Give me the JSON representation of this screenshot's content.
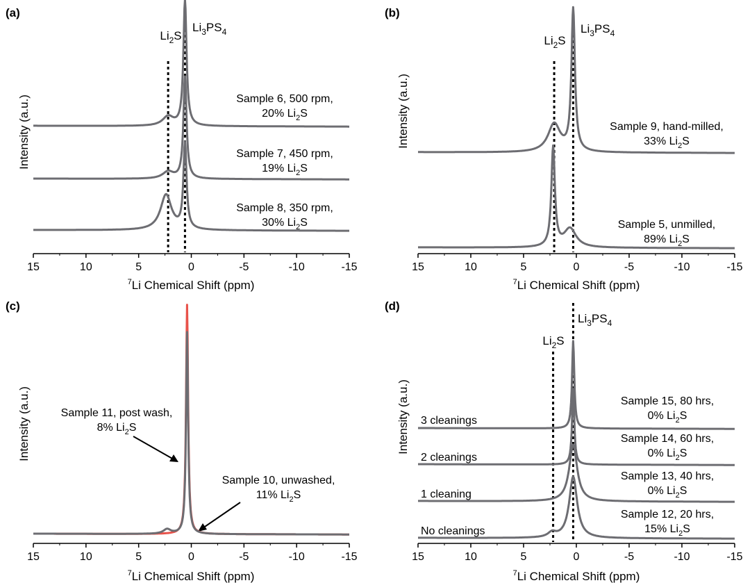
{
  "chart_data": [
    {
      "panel": "(a)",
      "type": "line",
      "xlabel_sup": "7",
      "xlabel": "Li Chemical Shift (ppm)",
      "ylabel": "Intensity (a.u.)",
      "xlim": [
        15,
        -15
      ],
      "xticks": [
        15,
        10,
        5,
        0,
        -5,
        -10,
        -15
      ],
      "reference_lines": [
        {
          "label": "Li2S",
          "label_main": "Li",
          "label_sub": "2",
          "label_tail": "S",
          "x": 2.2
        },
        {
          "label": "Li3PS4",
          "label_main": "Li",
          "label_sub": "3",
          "label_mid": "PS",
          "label_sub2": "4",
          "x": 0.6
        }
      ],
      "series": [
        {
          "label_line1": "Sample 6, 500 rpm,",
          "label_line2": "20% Li2S",
          "l2_main": "20% Li",
          "l2_sub": "2",
          "l2_tail": "S",
          "color": "#6d6d72",
          "peaks": [
            {
              "x": 0.6,
              "height": 0.53
            },
            {
              "x": 2.2,
              "height": 0.04
            }
          ]
        },
        {
          "label_line1": "Sample 7, 450 rpm,",
          "label_line2": "19% Li2S",
          "l2_main": "19% Li",
          "l2_sub": "2",
          "l2_tail": "S",
          "color": "#6d6d72",
          "peaks": [
            {
              "x": 0.6,
              "height": 0.43
            },
            {
              "x": 2.2,
              "height": 0.03
            }
          ]
        },
        {
          "label_line1": "Sample 8, 350 rpm,",
          "label_line2": "30% Li2S",
          "l2_main": "30% Li",
          "l2_sub": "2",
          "l2_tail": "S",
          "color": "#6d6d72",
          "peaks": [
            {
              "x": 0.6,
              "height": 0.36
            },
            {
              "x": 2.4,
              "height": 0.15
            }
          ]
        }
      ]
    },
    {
      "panel": "(b)",
      "type": "line",
      "xlabel_sup": "7",
      "xlabel": "Li Chemical Shift (ppm)",
      "ylabel": "Intensity (a.u.)",
      "xlim": [
        15,
        -15
      ],
      "xticks": [
        15,
        10,
        5,
        0,
        -5,
        -10,
        -15
      ],
      "reference_lines": [
        {
          "label": "Li2S",
          "label_main": "Li",
          "label_sub": "2",
          "label_tail": "S",
          "x": 2.1
        },
        {
          "label": "Li3PS4",
          "label_main": "Li",
          "label_sub": "3",
          "label_mid": "PS",
          "label_sub2": "4",
          "x": 0.3
        }
      ],
      "series": [
        {
          "label_line1": "Sample 9, hand-milled,",
          "label_line2": "33% Li2S",
          "l2_main": "33% Li",
          "l2_sub": "2",
          "l2_tail": "S",
          "color": "#6d6d72",
          "peaks": [
            {
              "x": 0.3,
              "height": 0.6
            },
            {
              "x": 2.1,
              "height": 0.12
            }
          ]
        },
        {
          "label_line1": "Sample 5, unmilled,",
          "label_line2": "89% Li2S",
          "l2_main": "89% Li",
          "l2_sub": "2",
          "l2_tail": "S",
          "color": "#6d6d72",
          "peaks": [
            {
              "x": 2.2,
              "height": 0.42
            },
            {
              "x": 0.6,
              "height": 0.08
            }
          ]
        }
      ]
    },
    {
      "panel": "(c)",
      "type": "line",
      "xlabel_sup": "7",
      "xlabel": "Li Chemical Shift (ppm)",
      "ylabel": "Intensity (a.u.)",
      "xlim": [
        15,
        -15
      ],
      "xticks": [
        15,
        10,
        5,
        0,
        -5,
        -10,
        -15
      ],
      "reference_lines": [],
      "series": [
        {
          "label_line1": "Sample 10, unwashed,",
          "label_line2": "11% Li2S",
          "l2_main": "11% Li",
          "l2_sub": "2",
          "l2_tail": "S",
          "color": "#e8524a",
          "peaks": [
            {
              "x": 0.4,
              "height": 1.0
            }
          ]
        },
        {
          "label_line1": "Sample 11, post wash,",
          "label_line2": "8% Li2S",
          "l2_main": "8% Li",
          "l2_sub": "2",
          "l2_tail": "S",
          "color": "#6d6d72",
          "peaks": [
            {
              "x": 0.4,
              "height": 0.88
            },
            {
              "x": 2.3,
              "height": 0.02
            }
          ]
        }
      ]
    },
    {
      "panel": "(d)",
      "type": "line",
      "xlabel_sup": "7",
      "xlabel": "Li Chemical Shift (ppm)",
      "ylabel": "Intensity (a.u.)",
      "xlim": [
        15,
        -15
      ],
      "xticks": [
        15,
        10,
        5,
        0,
        -5,
        -10,
        -15
      ],
      "reference_lines": [
        {
          "label": "Li2S",
          "label_main": "Li",
          "label_sub": "2",
          "label_tail": "S",
          "x": 2.2
        },
        {
          "label": "Li3PS4",
          "label_main": "Li",
          "label_sub": "3",
          "label_mid": "PS",
          "label_sub2": "4",
          "x": 0.3
        }
      ],
      "series": [
        {
          "left_label": "3 cleanings",
          "label_line1": "Sample 15, 80 hrs,",
          "label_line2": "0% Li2S",
          "l2_main": "0% Li",
          "l2_sub": "2",
          "l2_tail": "S",
          "color": "#6d6d72",
          "peaks": [
            {
              "x": 0.3,
              "height": 0.37
            }
          ]
        },
        {
          "left_label": "2 cleanings",
          "label_line1": "Sample 14, 60 hrs,",
          "label_line2": "0% Li2S",
          "l2_main": "0% Li",
          "l2_sub": "2",
          "l2_tail": "S",
          "color": "#6d6d72",
          "peaks": [
            {
              "x": 0.3,
              "height": 0.32
            }
          ]
        },
        {
          "left_label": "1 cleaning",
          "label_line1": "Sample 13, 40 hrs,",
          "label_line2": "0% Li2S",
          "l2_main": "0% Li",
          "l2_sub": "2",
          "l2_tail": "S",
          "color": "#6d6d72",
          "peaks": [
            {
              "x": 0.3,
              "height": 0.24
            }
          ]
        },
        {
          "left_label": "No cleanings",
          "label_line1": "Sample 12, 20 hrs,",
          "label_line2": "15% Li2S",
          "l2_main": "15% Li",
          "l2_sub": "2",
          "l2_tail": "S",
          "color": "#6d6d72",
          "peaks": [
            {
              "x": 0.3,
              "height": 0.26
            },
            {
              "x": 2.3,
              "height": 0.02
            }
          ]
        }
      ]
    }
  ]
}
